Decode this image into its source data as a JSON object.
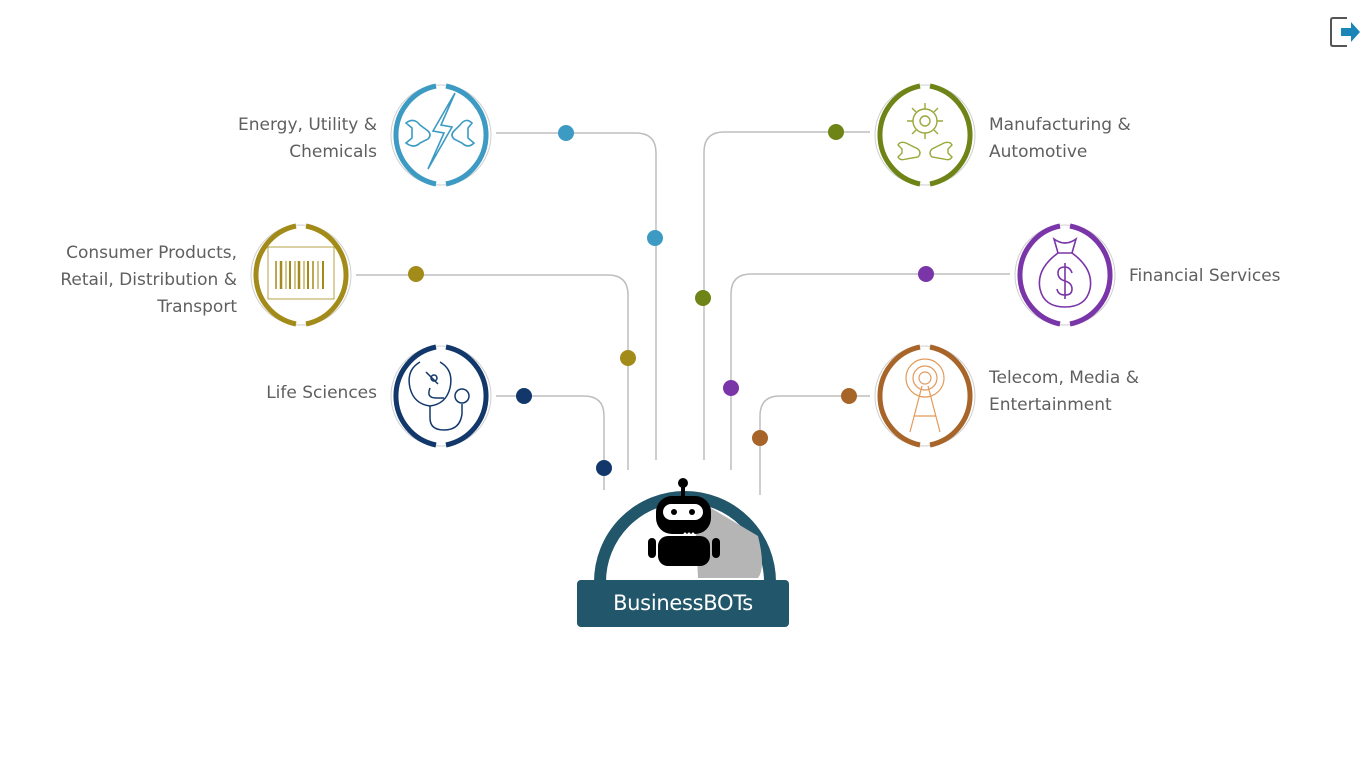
{
  "header": {
    "logout_icon": "logout-icon",
    "logout_color": "#1a86b8"
  },
  "center": {
    "title": "BusinessBOTs",
    "icon": "robot-icon",
    "ring_color": "#22566a"
  },
  "industries": [
    {
      "id": "energy",
      "label": "Energy, Utility &\nChemicals",
      "color": "#3d9bc3",
      "icon": "lightning-wrench-icon"
    },
    {
      "id": "consumer",
      "label": "Consumer Products,\nRetail, Distribution &\nTransport",
      "color": "#a38b1a",
      "icon": "barcode-icon"
    },
    {
      "id": "life-sciences",
      "label": "Life Sciences",
      "color": "#12386b",
      "icon": "stethoscope-microscope-icon"
    },
    {
      "id": "manufacturing",
      "label": "Manufacturing &\nAutomotive",
      "color": "#6f8416",
      "icon": "gear-wrench-icon"
    },
    {
      "id": "financial",
      "label": "Financial Services",
      "color": "#7a35a8",
      "icon": "money-bag-icon"
    },
    {
      "id": "telecom",
      "label": "Telecom, Media &\nEntertainment",
      "color": "#a8652a",
      "icon": "broadcast-tower-icon"
    }
  ]
}
